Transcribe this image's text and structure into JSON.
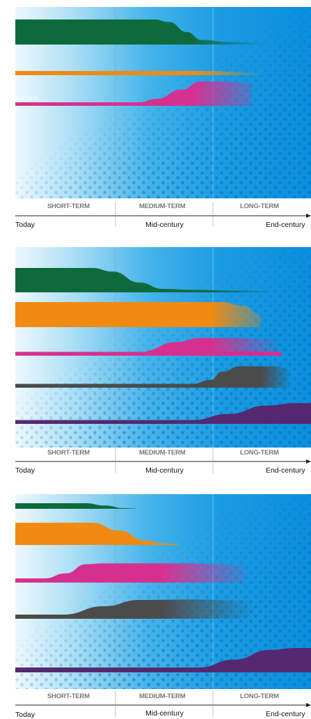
{
  "colors": {
    "sky_light": "#eef8fd",
    "sky_dark": "#0b8fde",
    "green": "#0e6a3b",
    "orange": "#f08a12",
    "magenta": "#d6308f",
    "gray": "#4b4b4b",
    "purple": "#54296f"
  },
  "panels": [
    {
      "note": "In T2 islands",
      "timeline": {
        "terms": [
          "SHORT-TERM",
          "MEDIUM-TERM",
          "LONG-TERM"
        ],
        "times": [
          "Today",
          "Mid-century",
          "End-century"
        ]
      },
      "series": [
        {
          "color": "green",
          "profile": [
            [
              0,
              1.0
            ],
            [
              0.47,
              1.0
            ],
            [
              0.52,
              0.9
            ],
            [
              0.58,
              0.5
            ],
            [
              0.63,
              0.18
            ],
            [
              0.73,
              0.1
            ],
            [
              0.88,
              0.05
            ]
          ]
        },
        {
          "color": "orange",
          "profile": [
            [
              0,
              1.0
            ],
            [
              0.67,
              1.0
            ],
            [
              0.72,
              0.85
            ],
            [
              0.8,
              0.55
            ],
            [
              0.86,
              0.25
            ]
          ]
        },
        {
          "color": "magenta",
          "profile": [
            [
              0,
              1.0
            ],
            [
              0.42,
              1.0
            ],
            [
              0.48,
              2.0
            ],
            [
              0.56,
              4.6
            ],
            [
              0.63,
              7.0
            ],
            [
              0.7,
              7.0
            ],
            [
              0.8,
              6.6
            ]
          ]
        }
      ]
    },
    {
      "note": "",
      "timeline": {
        "terms": [
          "SHORT-TERM",
          "MEDIUM-TERM",
          "LONG-TERM"
        ],
        "times": [
          "Today",
          "Mid-century",
          "End-century"
        ]
      },
      "series": [
        {
          "color": "green",
          "profile": [
            [
              0,
              1.0
            ],
            [
              0.26,
              1.0
            ],
            [
              0.33,
              0.85
            ],
            [
              0.42,
              0.4
            ],
            [
              0.5,
              0.14
            ],
            [
              0.6,
              0.1
            ],
            [
              0.75,
              0.07
            ],
            [
              0.86,
              0.05
            ]
          ]
        },
        {
          "color": "orange",
          "profile": [
            [
              0,
              1.0
            ],
            [
              0.7,
              1.0
            ],
            [
              0.77,
              0.85
            ],
            [
              0.83,
              0.5
            ]
          ]
        },
        {
          "color": "magenta",
          "profile": [
            [
              0,
              1.0
            ],
            [
              0.42,
              1.0
            ],
            [
              0.55,
              3.6
            ],
            [
              0.62,
              4.6
            ],
            [
              0.75,
              4.6
            ],
            [
              0.86,
              4.3
            ],
            [
              0.9,
              3.8
            ]
          ]
        },
        {
          "color": "gray",
          "profile": [
            [
              0,
              1.0
            ],
            [
              0.6,
              1.0
            ],
            [
              0.66,
              2.0
            ],
            [
              0.7,
              4.2
            ],
            [
              0.76,
              5.6
            ],
            [
              0.88,
              5.6
            ],
            [
              0.93,
              4.8
            ]
          ]
        },
        {
          "color": "purple",
          "profile": [
            [
              0,
              1.0
            ],
            [
              0.6,
              1.0
            ],
            [
              0.72,
              2.6
            ],
            [
              0.85,
              4.8
            ],
            [
              0.95,
              5.4
            ],
            [
              1.0,
              5.4
            ]
          ]
        }
      ]
    },
    {
      "note": "",
      "timeline": {
        "terms": [
          "SHORT-TERM",
          "MEDIUM-TERM",
          "LONG-TERM"
        ],
        "times": [
          "Today",
          "Mid-century",
          "End-century"
        ]
      },
      "series": [
        {
          "color": "green",
          "profile": [
            [
              0,
              1.0
            ],
            [
              0.24,
              1.0
            ],
            [
              0.3,
              0.6
            ],
            [
              0.37,
              0.12
            ],
            [
              0.41,
              0.05
            ]
          ]
        },
        {
          "color": "orange",
          "profile": [
            [
              0,
              1.0
            ],
            [
              0.26,
              1.0
            ],
            [
              0.35,
              0.65
            ],
            [
              0.44,
              0.2
            ],
            [
              0.5,
              0.07
            ],
            [
              0.55,
              0.05
            ]
          ]
        },
        {
          "color": "magenta",
          "profile": [
            [
              0,
              1.0
            ],
            [
              0.1,
              1.0
            ],
            [
              0.17,
              2.2
            ],
            [
              0.24,
              4.4
            ],
            [
              0.3,
              4.6
            ],
            [
              0.55,
              4.6
            ],
            [
              0.7,
              4.4
            ],
            [
              0.78,
              4.0
            ]
          ]
        },
        {
          "color": "gray",
          "profile": [
            [
              0,
              1.0
            ],
            [
              0.16,
              1.0
            ],
            [
              0.3,
              3.0
            ],
            [
              0.42,
              4.5
            ],
            [
              0.6,
              4.6
            ],
            [
              0.76,
              4.4
            ],
            [
              0.85,
              4.1
            ]
          ]
        },
        {
          "color": "purple",
          "profile": [
            [
              0,
              1.0
            ],
            [
              0.62,
              1.0
            ],
            [
              0.74,
              2.6
            ],
            [
              0.86,
              4.6
            ],
            [
              0.95,
              5.0
            ],
            [
              1.0,
              5.0
            ]
          ]
        }
      ]
    }
  ]
}
